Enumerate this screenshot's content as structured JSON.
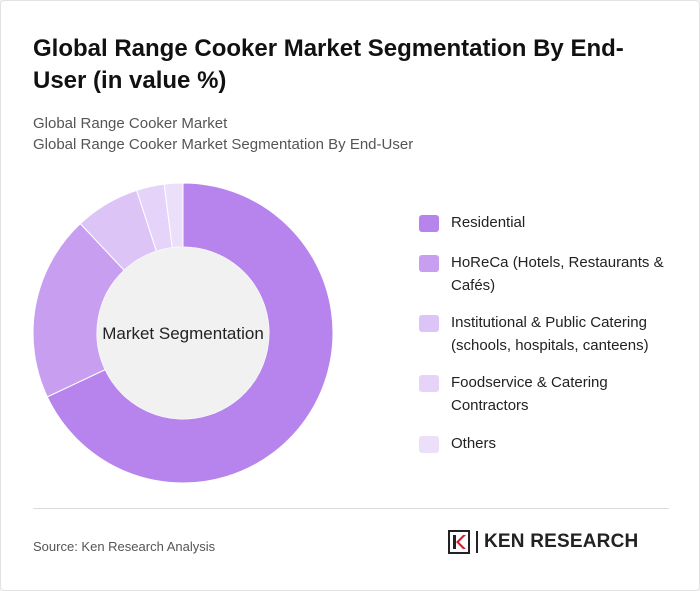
{
  "title": "Global Range Cooker Market Segmentation By End-User (in value %)",
  "subtitle": {
    "line1": "Global Range Cooker Market",
    "line2": "Global Range Cooker Market Segmentation By End-User"
  },
  "chart_data": {
    "type": "pie",
    "variant": "donut",
    "center_label": "Market Segmentation",
    "legend_position": "right",
    "categories": [
      "Residential",
      "HoReCa (Hotels, Restaurants & Cafés)",
      "Institutional & Public Catering (schools, hospitals, canteens)",
      "Foodservice & Catering Contractors",
      "Others"
    ],
    "values": [
      68,
      20,
      7,
      3,
      2
    ],
    "colors": [
      "#b684ec",
      "#c89ef0",
      "#dcc4f6",
      "#e6d3f9",
      "#ecdffa"
    ]
  },
  "source": "Source: Ken Research Analysis",
  "logo": {
    "text": "KEN RESEARCH",
    "icon": "ken-research-logo-icon"
  }
}
